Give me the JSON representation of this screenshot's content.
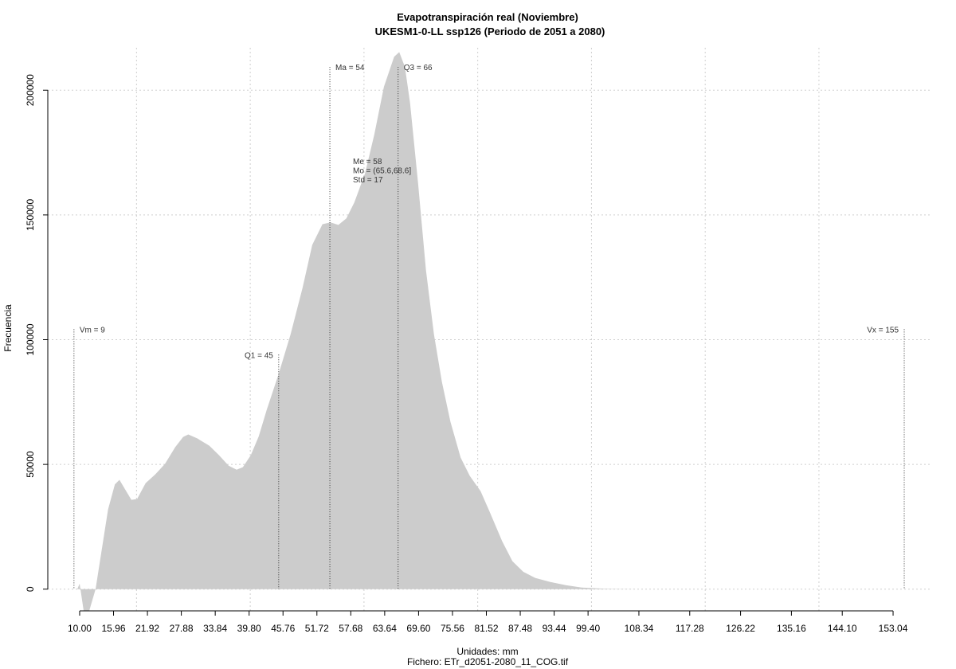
{
  "chart_data": {
    "type": "area",
    "title": "Evapotranspiración real (Noviembre)",
    "subtitle": "UKESM1-0-LL ssp126 (Periodo de 2051 a 2080)",
    "xlabel": "Unidades: mm",
    "caption": "Fichero: ETr_d2051-2080_11_COG.tif",
    "ylabel": "Frecuencia",
    "color": "#cccccc",
    "x": [
      9.58,
      10.0,
      10.7,
      11.7,
      12.8,
      13.9,
      15.0,
      16.2,
      17.0,
      18.0,
      19.1,
      20.1,
      21.6,
      23.3,
      25.0,
      26.8,
      28.2,
      29.1,
      30.7,
      32.8,
      34.5,
      36.2,
      37.6,
      38.7,
      40.1,
      41.5,
      42.9,
      45.0,
      47.1,
      49.2,
      50.9,
      52.7,
      54.1,
      55.5,
      56.9,
      58.3,
      60.2,
      61.8,
      63.5,
      65.3,
      66.2,
      67.2,
      68.1,
      69.5,
      70.9,
      72.3,
      73.7,
      75.2,
      77.0,
      78.6,
      80.5,
      82.1,
      84.3,
      86.1,
      88.0,
      90.1,
      92.7,
      95.5,
      98.3,
      102.5,
      108.1,
      154.0
    ],
    "values": [
      0,
      2200,
      -8600,
      -8600,
      0,
      16000,
      32000,
      42000,
      43800,
      40000,
      35800,
      36100,
      42500,
      46000,
      50200,
      56900,
      61000,
      62000,
      60400,
      57500,
      53700,
      49500,
      47900,
      48900,
      53700,
      61300,
      71900,
      86300,
      102200,
      120800,
      138000,
      146300,
      147000,
      146000,
      148600,
      155000,
      166800,
      182100,
      201300,
      213400,
      215300,
      209300,
      194900,
      163000,
      127800,
      102200,
      83100,
      67100,
      52700,
      45400,
      39300,
      31000,
      19200,
      11200,
      7000,
      4500,
      2900,
      1600,
      640,
      160,
      0,
      0
    ],
    "xlim": [
      4.4,
      159.9
    ],
    "ylim": [
      -8700,
      217000
    ],
    "xticks": [
      {
        "value": 10,
        "label": "10.00"
      },
      15.96,
      21.92,
      27.88,
      33.84,
      {
        "value": 39.8,
        "label": "39.80"
      },
      45.76,
      51.72,
      57.68,
      63.64,
      {
        "value": 69.6,
        "label": "69.60"
      },
      75.56,
      81.52,
      87.48,
      93.44,
      {
        "value": 99.4,
        "label": "99.40"
      },
      108.34,
      117.28,
      126.22,
      135.16,
      {
        "value": 144.1,
        "label": "144.10"
      },
      153.04
    ],
    "yticks": [
      0,
      50000,
      100000,
      150000,
      200000
    ],
    "xgrid": [
      20,
      40,
      60,
      80,
      100,
      120,
      140
    ],
    "grid": true,
    "markers": [
      {
        "label": "Vm = 9",
        "x": 9,
        "y": 104200
      },
      {
        "label": "Q1 = 45",
        "x": 45,
        "y": 94000
      },
      {
        "label": "Ma = 54",
        "x": 54,
        "y": 209300
      },
      {
        "label": "Q3 = 66",
        "x": 66,
        "y": 209300
      },
      {
        "label": "Vx = 155",
        "x": 155,
        "y": 104200
      }
    ],
    "stats": [
      "Me = 58",
      "Mo = (65.6,68.6]",
      "Std = 17"
    ]
  }
}
